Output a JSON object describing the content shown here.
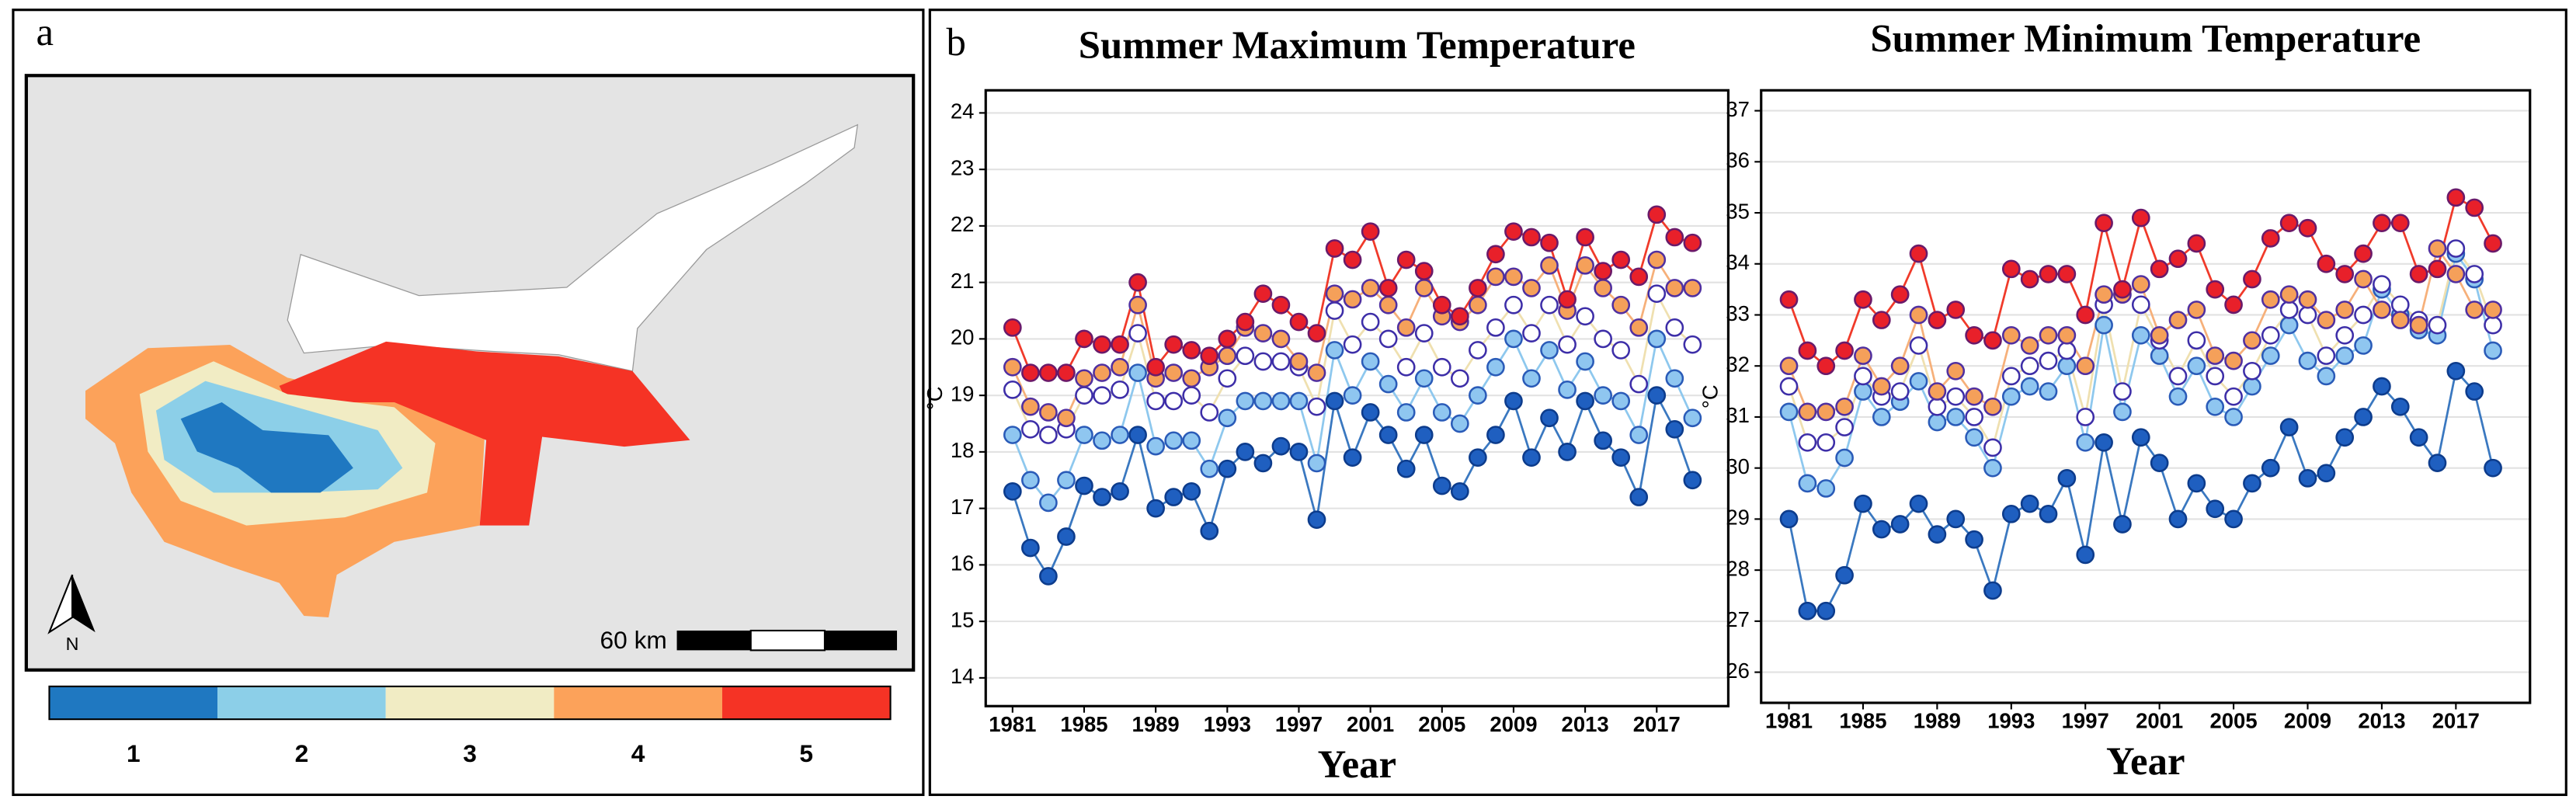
{
  "panel_labels": [
    "a",
    "b"
  ],
  "map": {
    "legend": {
      "labels": [
        "1",
        "2",
        "3",
        "4",
        "5"
      ],
      "colors": [
        "#1f78c1",
        "#8ccfe8",
        "#f1ecc4",
        "#fca25a",
        "#f53325"
      ]
    },
    "scale_label": "60 km",
    "north_label": "N"
  },
  "chart_data": [
    {
      "type": "line",
      "title": "Summer Maximum Temperature",
      "x_label": "Year",
      "y_label": "°C",
      "x": [
        1981,
        1982,
        1983,
        1984,
        1985,
        1986,
        1987,
        1988,
        1989,
        1990,
        1991,
        1992,
        1993,
        1994,
        1995,
        1996,
        1997,
        1998,
        1999,
        2000,
        2001,
        2002,
        2003,
        2004,
        2005,
        2006,
        2007,
        2008,
        2009,
        2010,
        2011,
        2012,
        2013,
        2014,
        2015,
        2016,
        2017,
        2018,
        2019
      ],
      "xlim": [
        1979.5,
        2021
      ],
      "xticks": [
        1981,
        1985,
        1989,
        1993,
        1997,
        2001,
        2005,
        2009,
        2013,
        2017
      ],
      "ylim": [
        13.5,
        24.4
      ],
      "yticks": [
        14,
        15,
        16,
        17,
        18,
        19,
        20,
        21,
        22,
        23,
        24
      ],
      "grid": true,
      "series": [
        {
          "color": "#3a78c0",
          "marker_fill": "#1f5fc0",
          "marker_edge": "#0d3c8c",
          "values": [
            17.3,
            16.3,
            15.8,
            16.5,
            17.4,
            17.2,
            17.3,
            18.3,
            17.0,
            17.2,
            17.3,
            16.6,
            17.7,
            18.0,
            17.8,
            18.1,
            18.0,
            16.8,
            18.9,
            17.9,
            18.7,
            18.3,
            17.7,
            18.3,
            17.4,
            17.3,
            17.9,
            18.3,
            18.9,
            17.9,
            18.6,
            18.0,
            18.9,
            18.2,
            17.9,
            17.2,
            19.0,
            18.4,
            17.5
          ]
        },
        {
          "color": "#8ec8ee",
          "marker_fill": "#8fc6f0",
          "marker_edge": "#2a5bb8",
          "values": [
            18.3,
            17.5,
            17.1,
            17.5,
            18.3,
            18.2,
            18.3,
            19.4,
            18.1,
            18.2,
            18.2,
            17.7,
            18.6,
            18.9,
            18.9,
            18.9,
            18.9,
            17.8,
            19.8,
            19.0,
            19.6,
            19.2,
            18.7,
            19.3,
            18.7,
            18.5,
            19.0,
            19.5,
            20.0,
            19.3,
            19.8,
            19.1,
            19.6,
            19.0,
            18.9,
            18.3,
            20.0,
            19.3,
            18.6
          ]
        },
        {
          "color": "#efe0b0",
          "marker_fill": "#ffffff",
          "marker_edge": "#3d2ea8",
          "values": [
            19.1,
            18.4,
            18.3,
            18.4,
            19.0,
            19.0,
            19.1,
            20.1,
            18.9,
            18.9,
            19.0,
            18.7,
            19.3,
            19.7,
            19.6,
            19.6,
            19.5,
            18.8,
            20.5,
            19.9,
            20.3,
            20.0,
            19.5,
            20.1,
            19.5,
            19.3,
            19.8,
            20.2,
            20.6,
            20.1,
            20.6,
            19.9,
            20.4,
            20.0,
            19.8,
            19.2,
            20.8,
            20.2,
            19.9
          ]
        },
        {
          "color": "#f6b07a",
          "marker_fill": "#f5a05a",
          "marker_edge": "#5030a0",
          "values": [
            19.5,
            18.8,
            18.7,
            18.6,
            19.3,
            19.4,
            19.5,
            20.6,
            19.3,
            19.4,
            19.3,
            19.5,
            19.7,
            20.2,
            20.1,
            20.0,
            19.6,
            19.4,
            20.8,
            20.7,
            20.9,
            20.6,
            20.2,
            20.9,
            20.4,
            20.3,
            20.6,
            21.1,
            21.1,
            20.9,
            21.3,
            20.5,
            21.3,
            20.9,
            20.6,
            20.2,
            21.4,
            20.9,
            20.9
          ]
        },
        {
          "color": "#f03a2a",
          "marker_fill": "#e8202a",
          "marker_edge": "#6a1a6a",
          "values": [
            20.2,
            19.4,
            19.4,
            19.4,
            20.0,
            19.9,
            19.9,
            21.0,
            19.5,
            19.9,
            19.8,
            19.7,
            20.0,
            20.3,
            20.8,
            20.6,
            20.3,
            20.1,
            21.6,
            21.4,
            21.9,
            20.9,
            21.4,
            21.2,
            20.6,
            20.4,
            20.9,
            21.5,
            21.9,
            21.8,
            21.7,
            20.7,
            21.8,
            21.2,
            21.4,
            21.1,
            22.2,
            21.8,
            21.7
          ]
        }
      ]
    },
    {
      "type": "line",
      "title": "Summer Minimum Temperature",
      "x_label": "Year",
      "y_label": "°C",
      "x": [
        1981,
        1982,
        1983,
        1984,
        1985,
        1986,
        1987,
        1988,
        1989,
        1990,
        1991,
        1992,
        1993,
        1994,
        1995,
        1996,
        1997,
        1998,
        1999,
        2000,
        2001,
        2002,
        2003,
        2004,
        2005,
        2006,
        2007,
        2008,
        2009,
        2010,
        2011,
        2012,
        2013,
        2014,
        2015,
        2016,
        2017,
        2018,
        2019
      ],
      "xlim": [
        1979.5,
        2021
      ],
      "xticks": [
        1981,
        1985,
        1989,
        1993,
        1997,
        2001,
        2005,
        2009,
        2013,
        2017
      ],
      "ylim": [
        25.4,
        37.4
      ],
      "yticks": [
        26,
        27,
        28,
        29,
        30,
        31,
        32,
        33,
        34,
        35,
        36,
        37
      ],
      "grid": true,
      "series": [
        {
          "color": "#3a78c0",
          "marker_fill": "#1f5fc0",
          "marker_edge": "#0d3c8c",
          "values": [
            29.0,
            27.2,
            27.2,
            27.9,
            29.3,
            28.8,
            28.9,
            29.3,
            28.7,
            29.0,
            28.6,
            27.6,
            29.1,
            29.3,
            29.1,
            29.8,
            28.3,
            30.5,
            28.9,
            30.6,
            30.1,
            29.0,
            29.7,
            29.2,
            29.0,
            29.7,
            30.0,
            30.8,
            29.8,
            29.9,
            30.6,
            31.0,
            31.6,
            31.2,
            30.6,
            30.1,
            31.9,
            31.5,
            30.0
          ]
        },
        {
          "color": "#8ec8ee",
          "marker_fill": "#8fc6f0",
          "marker_edge": "#2a5bb8",
          "values": [
            31.1,
            29.7,
            29.6,
            30.2,
            31.5,
            31.0,
            31.3,
            31.7,
            30.9,
            31.0,
            30.6,
            30.0,
            31.4,
            31.6,
            31.5,
            32.0,
            30.5,
            32.8,
            31.1,
            32.6,
            32.2,
            31.4,
            32.0,
            31.2,
            31.0,
            31.6,
            32.2,
            32.8,
            32.1,
            31.8,
            32.2,
            32.4,
            33.5,
            33.0,
            32.7,
            32.6,
            34.2,
            33.7,
            32.3
          ]
        },
        {
          "color": "#efe0b0",
          "marker_fill": "#ffffff",
          "marker_edge": "#3d2ea8",
          "values": [
            31.6,
            30.5,
            30.5,
            30.8,
            31.8,
            31.4,
            31.5,
            32.4,
            31.2,
            31.4,
            31.0,
            30.4,
            31.8,
            32.0,
            32.1,
            32.3,
            31.0,
            33.2,
            31.5,
            33.2,
            32.5,
            31.8,
            32.5,
            31.8,
            31.4,
            31.9,
            32.6,
            33.1,
            33.0,
            32.2,
            32.6,
            33.0,
            33.6,
            33.2,
            32.9,
            32.8,
            34.3,
            33.8,
            32.8
          ]
        },
        {
          "color": "#f6b07a",
          "marker_fill": "#f5a05a",
          "marker_edge": "#5030a0",
          "values": [
            32.0,
            31.1,
            31.1,
            31.2,
            32.2,
            31.6,
            32.0,
            33.0,
            31.5,
            31.9,
            31.4,
            31.2,
            32.6,
            32.4,
            32.6,
            32.6,
            32.0,
            33.4,
            33.4,
            33.6,
            32.6,
            32.9,
            33.1,
            32.2,
            32.1,
            32.5,
            33.3,
            33.4,
            33.3,
            32.9,
            33.1,
            33.7,
            33.1,
            32.9,
            32.8,
            34.3,
            33.8,
            33.1,
            33.1
          ]
        },
        {
          "color": "#f03a2a",
          "marker_fill": "#e8202a",
          "marker_edge": "#6a1a6a",
          "values": [
            33.3,
            32.3,
            32.0,
            32.3,
            33.3,
            32.9,
            33.4,
            34.2,
            32.9,
            33.1,
            32.6,
            32.5,
            33.9,
            33.7,
            33.8,
            33.8,
            33.0,
            34.8,
            33.5,
            34.9,
            33.9,
            34.1,
            34.4,
            33.5,
            33.2,
            33.7,
            34.5,
            34.8,
            34.7,
            34.0,
            33.8,
            34.2,
            34.8,
            34.8,
            33.8,
            33.9,
            35.3,
            35.1,
            34.4
          ]
        }
      ]
    }
  ]
}
